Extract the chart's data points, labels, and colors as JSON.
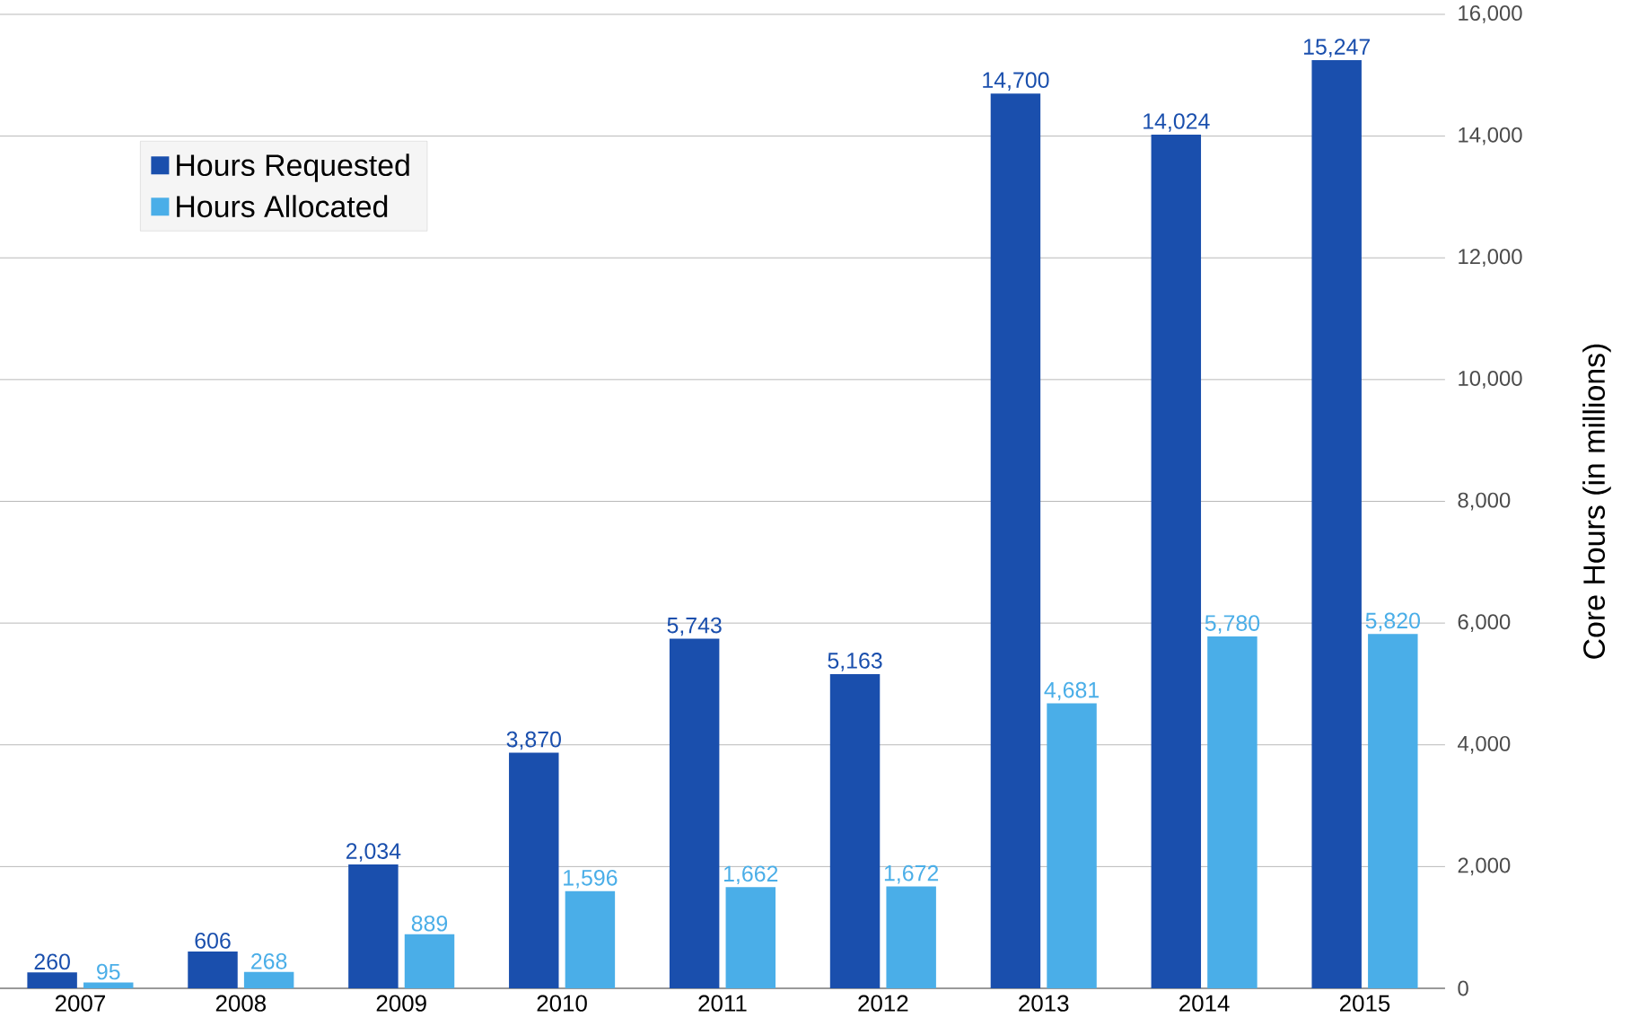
{
  "chart_data": {
    "type": "bar",
    "ylabel": "Core Hours (in millions)",
    "categories": [
      "2007",
      "2008",
      "2009",
      "2010",
      "2011",
      "2012",
      "2013",
      "2014",
      "2015"
    ],
    "series": [
      {
        "name": "Hours Requested",
        "color": "#1a4fad",
        "values": [
          260,
          606,
          2034,
          3870,
          5743,
          5163,
          14700,
          14024,
          15247
        ],
        "value_labels": [
          "260",
          "606",
          "2,034",
          "3,870",
          "5,743",
          "5,163",
          "14,700",
          "14,024",
          "15,247"
        ]
      },
      {
        "name": "Hours Allocated",
        "color": "#4aaee8",
        "values": [
          95,
          268,
          889,
          1596,
          1662,
          1672,
          4681,
          5780,
          5820
        ],
        "value_labels": [
          "95",
          "268",
          "889",
          "1,596",
          "1,662",
          "1,672",
          "4,681",
          "5,780",
          "5,820"
        ]
      }
    ],
    "ylim": [
      0,
      16000
    ],
    "yticks": [
      0,
      {
        "value": 2000,
        "label": "2,000"
      },
      {
        "value": 4000,
        "label": "4,000"
      },
      {
        "value": 6000,
        "label": "6,000"
      },
      {
        "value": 8000,
        "label": "8,000"
      },
      {
        "value": 10000,
        "label": "10,000"
      },
      {
        "value": 12000,
        "label": "12,000"
      },
      {
        "value": 14000,
        "label": "14,000"
      },
      {
        "value": 16000,
        "label": "16,000"
      }
    ],
    "grid": "y",
    "legend": "top left"
  }
}
